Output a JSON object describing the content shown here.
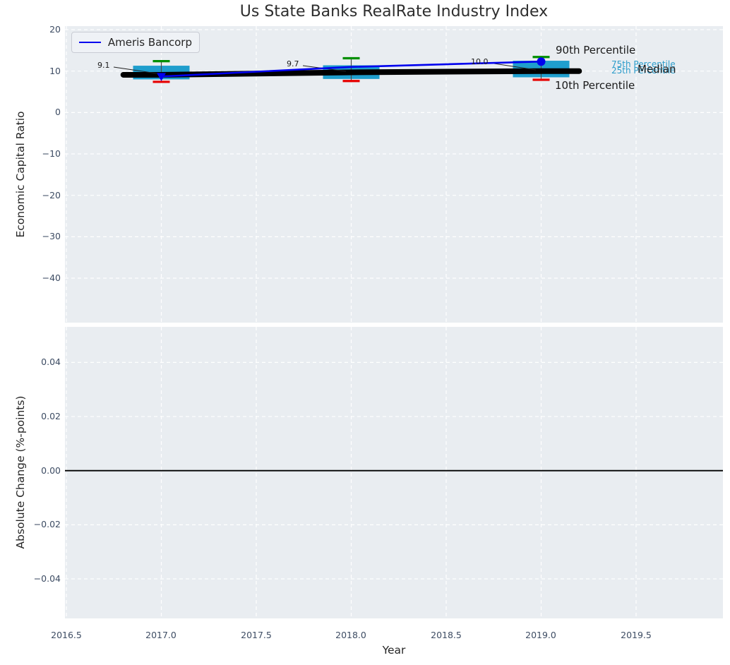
{
  "title": "Us State Banks RealRate Industry Index",
  "legend": {
    "items": [
      {
        "label": "Ameris Bancorp",
        "color": "#0000ee"
      }
    ]
  },
  "axes": {
    "top": {
      "ylabel": "Economic Capital Ratio",
      "yticks": [
        "20",
        "10",
        "0",
        "−10",
        "−20",
        "−30",
        "−40"
      ]
    },
    "bottom": {
      "ylabel": "Absolute Change (%-points)",
      "yticks": [
        "0.04",
        "0.02",
        "0.00",
        "−0.02",
        "−0.04"
      ]
    },
    "x": {
      "label": "Year",
      "ticks": [
        "2016.5",
        "2017.0",
        "2017.5",
        "2018.0",
        "2018.5",
        "2019.0",
        "2019.5"
      ]
    }
  },
  "annotations": {
    "values": [
      "9.1",
      "9.7",
      "10.0"
    ],
    "percentile_labels": {
      "p90": "90th Percentile",
      "p75": "75th Percentile",
      "p25": "25th Percentile",
      "median": "Median",
      "p10": "10th Percentile"
    }
  },
  "colors": {
    "ameris_line": "#0000ee",
    "median_line": "#000000",
    "box_fill": "#1f9ecd",
    "whisker": "#4a4a4a",
    "cap_top": "#008f00",
    "cap_bottom": "#e60000",
    "plot_bg": "#e9edf1",
    "grid": "#ffffff",
    "tick_text": "#3d4c63",
    "percentile_text": "#2b9cca",
    "zero_line": "#000000"
  },
  "chart_data": {
    "type": "line",
    "title": "Us State Banks RealRate Industry Index",
    "xlabel": "Year",
    "xticks": [
      2016.5,
      2017.0,
      2017.5,
      2018.0,
      2018.5,
      2019.0,
      2019.5
    ],
    "xlim": [
      2016.49,
      2019.96
    ],
    "grid": {
      "on": true,
      "color": "#ffffff",
      "style": "dashed"
    },
    "panels": [
      {
        "ylabel": "Economic Capital Ratio",
        "ylim": [
          -51,
          21
        ],
        "yticks": [
          20,
          10,
          0,
          -10,
          -20,
          -30,
          -40
        ],
        "years": [
          2017,
          2018,
          2019
        ],
        "series": [
          {
            "name": "Ameris Bancorp",
            "type": "line",
            "color": "#0000ee",
            "values": [
              8.7,
              11.0,
              12.3
            ],
            "markers": [
              "triangle-down",
              null,
              "circle"
            ]
          },
          {
            "name": "Median",
            "type": "line",
            "color": "#000000",
            "linewidth": 8,
            "values": [
              9.1,
              9.7,
              10.0
            ],
            "x_extension": [
              2016.8,
              2019.2
            ],
            "annotations": [
              "9.1",
              "9.7",
              "10.0"
            ]
          }
        ],
        "boxplots": [
          {
            "year": 2017,
            "p10": 7.4,
            "p25": 8.0,
            "median": 9.1,
            "p75": 11.3,
            "p90": 12.4
          },
          {
            "year": 2018,
            "p10": 7.6,
            "p25": 8.1,
            "median": 9.7,
            "p75": 11.4,
            "p90": 13.1
          },
          {
            "year": 2019,
            "p10": 7.9,
            "p25": 8.5,
            "median": 10.0,
            "p75": 12.5,
            "p90": 13.4
          }
        ],
        "legend": {
          "position": "upper left",
          "entries": [
            "Ameris Bancorp"
          ]
        }
      },
      {
        "ylabel": "Absolute Change (%-points)",
        "ylim": [
          -0.054,
          0.054
        ],
        "yticks": [
          0.04,
          0.02,
          0.0,
          -0.02,
          -0.04
        ],
        "series": [],
        "zero_line": 0.0
      }
    ]
  }
}
